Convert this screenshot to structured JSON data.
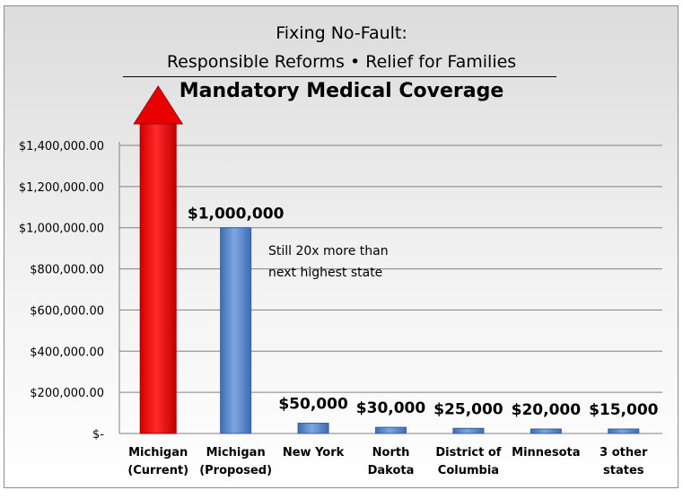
{
  "title_lines": [
    "Fixing No-Fault:",
    "Responsible Reforms • Relief for Families"
  ],
  "chart_data": {
    "type": "bar",
    "title": "Mandatory Medical Coverage",
    "categories": [
      [
        "Michigan",
        "(Current)"
      ],
      [
        "Michigan",
        "(Proposed)"
      ],
      [
        "New York"
      ],
      [
        "North",
        "Dakota"
      ],
      [
        "District of",
        "Columbia"
      ],
      [
        "Minnesota"
      ],
      [
        "3 other",
        "states"
      ]
    ],
    "values": [
      null,
      1000000,
      50000,
      30000,
      25000,
      20000,
      15000
    ],
    "current_unlimited": true,
    "data_labels": [
      "",
      "$1,000,000",
      "$50,000",
      "$30,000",
      "$25,000",
      "$20,000",
      "$15,000"
    ],
    "yticks": [
      "$-",
      "$200,000.00",
      "$400,000.00",
      "$600,000.00",
      "$800,000.00",
      "$1,000,000.00",
      "$1,200,000.00",
      "$1,400,000.00"
    ],
    "ylim": [
      0,
      1400000
    ],
    "grid": true,
    "annotation": [
      "Still 20x more than",
      "next highest state"
    ],
    "colors": {
      "current": "#ff0000",
      "proposed": "#5b87c9",
      "gridline": "#808080"
    }
  }
}
